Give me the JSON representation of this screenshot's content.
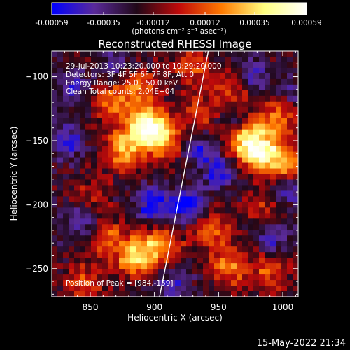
{
  "chart_data": {
    "type": "heatmap",
    "title": "Reconstructed RHESSI Image",
    "xlabel": "Heliocentric X (arcsec)",
    "ylabel": "Heliocentric Y (arcsec)",
    "xlim": [
      820,
      1012
    ],
    "ylim": [
      -272,
      -80
    ],
    "x_ticks": [
      "850",
      "900",
      "950",
      "1000"
    ],
    "x_tick_values": [
      850,
      900,
      950,
      1000
    ],
    "y_ticks": [
      "-100",
      "-150",
      "-200",
      "-250"
    ],
    "y_tick_values": [
      -100,
      -150,
      -200,
      -250
    ],
    "colorbar": {
      "range": [
        -0.00059,
        0.00059
      ],
      "ticks": [
        "-0.00059",
        "-0.00035",
        "-0.00012",
        "0.00012",
        "0.00035",
        "0.00059"
      ],
      "tick_values": [
        -0.00059,
        -0.00035,
        -0.00012,
        0.00012,
        0.00035,
        0.00059
      ],
      "unit_label": "(photons cm⁻² s⁻¹ asec⁻²)",
      "colors": [
        "#0000ff",
        "#5a2a9a",
        "#200818",
        "#c00a0a",
        "#ff7a00",
        "#ffff80",
        "#ffffff"
      ]
    },
    "annotations": {
      "time_range": "29-Jul-2013 10:23:20.000 to 10:29:20.000",
      "detectors": "Detectors: 3F 4F 5F 6F 7F 8F, Att 0",
      "energy": "Energy Range: 25.0 - 50.0 keV",
      "clean": "Clean    Total counts: 2.04E+04",
      "peak": "Position of Peak = [984,-159]"
    },
    "limb_line": {
      "x": [
        904,
        942
      ],
      "y": [
        -272,
        -80
      ]
    },
    "emission_hotspots": [
      {
        "x": 892,
        "y": -138,
        "amp": 1.0
      },
      {
        "x": 905,
        "y": -148,
        "amp": 0.8
      },
      {
        "x": 875,
        "y": -158,
        "amp": 0.75
      },
      {
        "x": 865,
        "y": -120,
        "amp": 0.6
      },
      {
        "x": 888,
        "y": -108,
        "amp": 0.55
      },
      {
        "x": 930,
        "y": -92,
        "amp": 0.5
      },
      {
        "x": 935,
        "y": -130,
        "amp": 0.45
      },
      {
        "x": 984,
        "y": -159,
        "amp": 1.05
      },
      {
        "x": 970,
        "y": -148,
        "amp": 0.75
      },
      {
        "x": 996,
        "y": -130,
        "amp": 0.65
      },
      {
        "x": 1003,
        "y": -170,
        "amp": 0.6
      },
      {
        "x": 960,
        "y": -112,
        "amp": 0.5
      },
      {
        "x": 885,
        "y": -240,
        "amp": 0.85
      },
      {
        "x": 905,
        "y": -232,
        "amp": 0.7
      },
      {
        "x": 860,
        "y": -225,
        "amp": 0.55
      },
      {
        "x": 845,
        "y": -262,
        "amp": 0.5
      },
      {
        "x": 958,
        "y": -248,
        "amp": 0.65
      },
      {
        "x": 945,
        "y": -220,
        "amp": 0.5
      },
      {
        "x": 990,
        "y": -252,
        "amp": 0.5
      },
      {
        "x": 985,
        "y": -205,
        "amp": 0.4
      },
      {
        "x": 850,
        "y": -195,
        "amp": 0.35
      }
    ],
    "absorption_spots": [
      {
        "x": 925,
        "y": -200,
        "amp": 0.8
      },
      {
        "x": 898,
        "y": -200,
        "amp": 0.6
      },
      {
        "x": 845,
        "y": -212,
        "amp": 0.6
      },
      {
        "x": 832,
        "y": -150,
        "amp": 0.55
      },
      {
        "x": 838,
        "y": -110,
        "amp": 0.45
      },
      {
        "x": 950,
        "y": -175,
        "amp": 0.55
      },
      {
        "x": 935,
        "y": -155,
        "amp": 0.5
      },
      {
        "x": 990,
        "y": -225,
        "amp": 0.55
      },
      {
        "x": 1005,
        "y": -188,
        "amp": 0.6
      },
      {
        "x": 870,
        "y": -92,
        "amp": 0.4
      },
      {
        "x": 960,
        "y": -132,
        "amp": 0.45
      },
      {
        "x": 975,
        "y": -100,
        "amp": 0.45
      },
      {
        "x": 915,
        "y": -262,
        "amp": 0.45
      },
      {
        "x": 1005,
        "y": -115,
        "amp": 0.35
      }
    ]
  },
  "footer": {
    "timestamp": "15-May-2022 21:34"
  }
}
